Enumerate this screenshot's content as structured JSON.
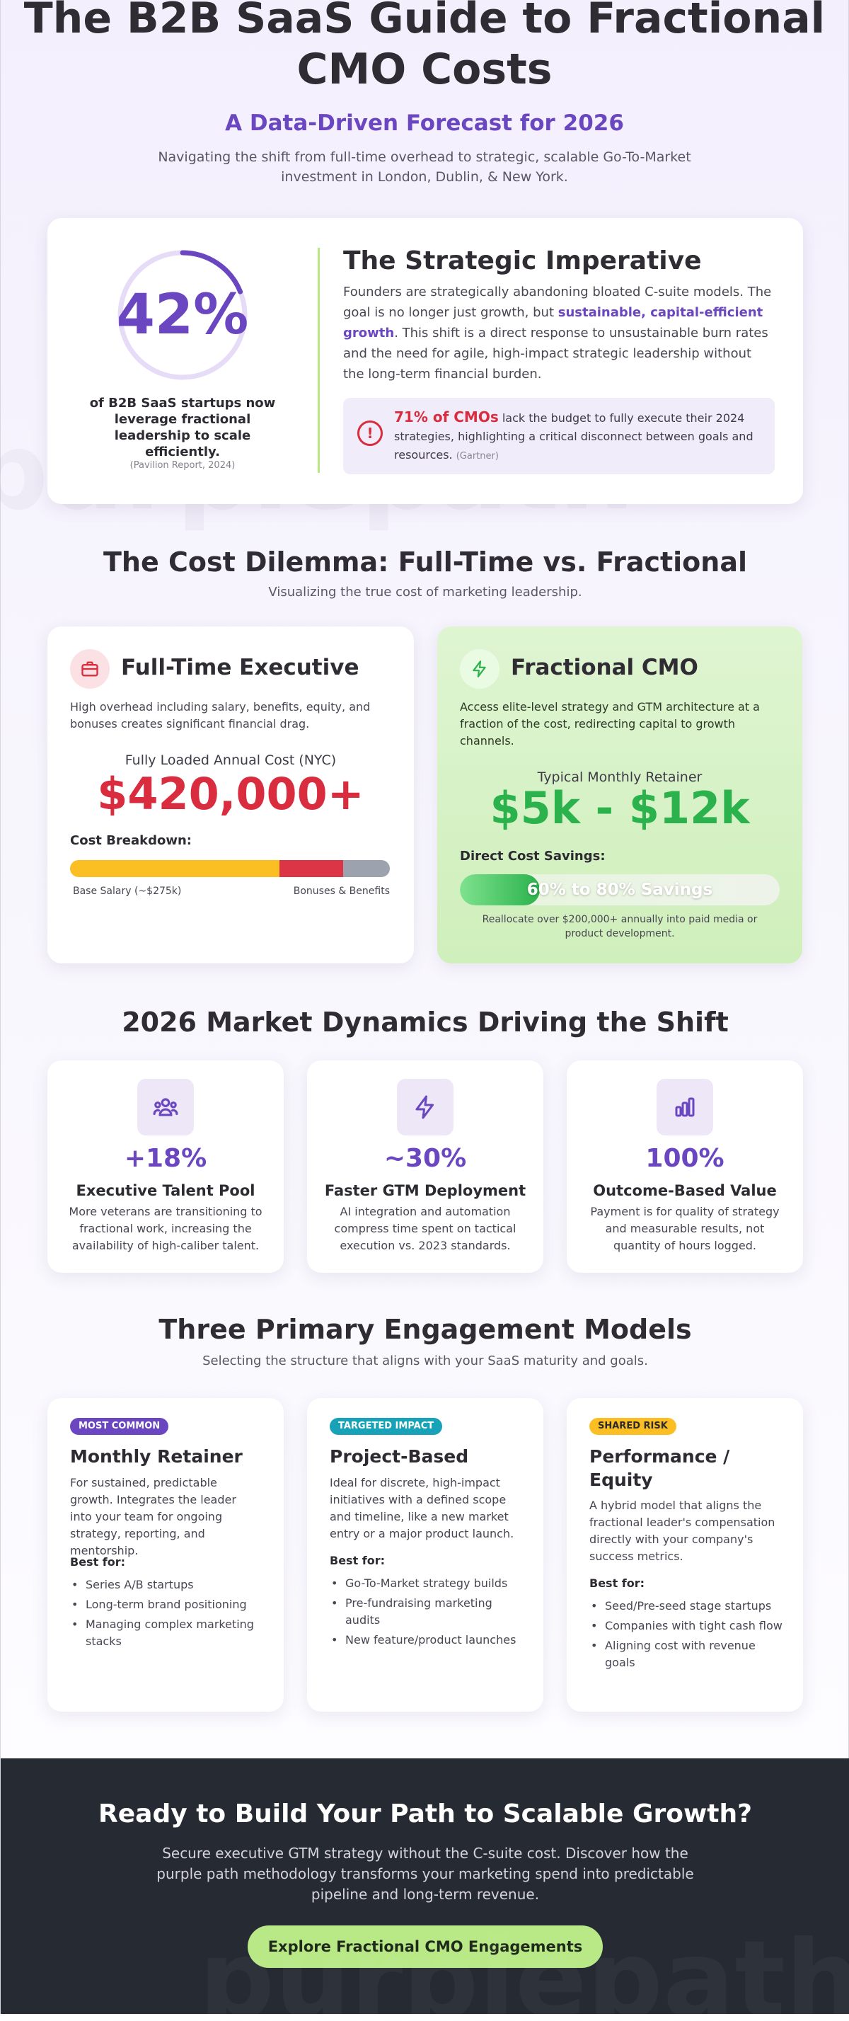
{
  "hero": {
    "title": "The B2B SaaS Guide to Fractional CMO Costs",
    "subtitle": "A Data-Driven Forecast for 2026",
    "description": "Navigating the shift from full-time overhead to strategic, scalable Go-To-Market investment in London, Dublin, & New York."
  },
  "imperative": {
    "stat_value": "42%",
    "stat_fraction": 0.42,
    "stat_caption": "of B2B SaaS startups now leverage fractional leadership to scale efficiently.",
    "stat_source": "(Pavilion Report, 2024)",
    "heading": "The Strategic Imperative",
    "body_part1": "Founders are strategically abandoning bloated C-suite models. The goal is no longer just growth, but ",
    "body_emphasis": "sustainable, capital-efficient growth",
    "body_part2": ". This shift is a direct response to unsustainable burn rates and the need for agile, high-impact strategic leadership without the long-term financial burden.",
    "alert_icon": "alert-circle-icon",
    "alert_highlight": "71% of CMOs",
    "alert_text": " lack the budget to fully execute their 2024 strategies, highlighting a critical disconnect between goals and resources.",
    "alert_source": "(Gartner)"
  },
  "dilemma": {
    "title": "The Cost Dilemma: Full-Time vs. Fractional",
    "subtitle": "Visualizing the true cost of marketing leadership.",
    "fulltime": {
      "icon": "briefcase-icon",
      "title": "Full-Time Executive",
      "description": "High overhead including salary, benefits, equity, and bonuses creates significant financial drag.",
      "cost_label": "Fully Loaded Annual Cost (NYC)",
      "cost_value": "$420,000+",
      "breakdown_label": "Cost Breakdown:",
      "breakdown": [
        {
          "name": "Base Salary",
          "share": 0.655,
          "color": "#fbbf24"
        },
        {
          "name": "Bonuses",
          "share": 0.2,
          "color": "#dc3545"
        },
        {
          "name": "Benefits",
          "share": 0.145,
          "color": "#9ca3af"
        }
      ],
      "label_left": "Base Salary (~$275k)",
      "label_right": "Bonuses & Benefits"
    },
    "fractional": {
      "icon": "lightning-icon",
      "title": "Fractional CMO",
      "description": "Access elite-level strategy and GTM architecture at a fraction of the cost, redirecting capital to growth channels.",
      "cost_label": "Typical Monthly Retainer",
      "cost_value": "$5k - $12k",
      "savings_label": "Direct Cost Savings:",
      "savings_bar_text": "60% to 80% Savings",
      "savings_fill": 0.25,
      "savings_note": "Reallocate over $200,000+ annually into paid media or product development."
    }
  },
  "dynamics": {
    "title": "2026 Market Dynamics Driving the Shift",
    "items": [
      {
        "icon": "users-icon",
        "value": "+18%",
        "title": "Executive Talent Pool",
        "description": "More veterans are transitioning to fractional work, increasing the availability of high-caliber talent."
      },
      {
        "icon": "lightning-icon",
        "value": "~30%",
        "title": "Faster GTM Deployment",
        "description": "AI integration and automation compress time spent on tactical execution vs. 2023 standards."
      },
      {
        "icon": "bar-chart-icon",
        "value": "100%",
        "title": "Outcome-Based Value",
        "description": "Payment is for quality of strategy and measurable results, not quantity of hours logged."
      }
    ]
  },
  "models": {
    "title": "Three Primary Engagement Models",
    "subtitle": "Selecting the structure that aligns with your SaaS maturity and goals.",
    "items": [
      {
        "badge": "MOST COMMON",
        "badge_bg": "#6b46c1",
        "badge_fg": "#ffffff",
        "title": "Monthly Retainer",
        "description": "For sustained, predictable growth. Integrates the leader into your team for ongoing strategy, reporting, and mentorship.",
        "best_for_label": "Best for:",
        "best_for": [
          "Series A/B startups",
          "Long-term brand positioning",
          "Managing complex marketing stacks"
        ]
      },
      {
        "badge": "TARGETED IMPACT",
        "badge_bg": "#17a2b8",
        "badge_fg": "#ffffff",
        "title": "Project-Based",
        "description": "Ideal for discrete, high-impact initiatives with a defined scope and timeline, like a new market entry or a major product launch.",
        "best_for_label": "Best for:",
        "best_for": [
          "Go-To-Market strategy builds",
          "Pre-fundraising marketing audits",
          "New feature/product launches"
        ]
      },
      {
        "badge": "SHARED RISK",
        "badge_bg": "#fbbf24",
        "badge_fg": "#2d2a32",
        "title": "Performance / Equity",
        "description": "A hybrid model that aligns the fractional leader's compensation directly with your company's success metrics.",
        "best_for_label": "Best for:",
        "best_for": [
          "Seed/Pre-seed stage startups",
          "Companies with tight cash flow",
          "Aligning cost with revenue goals"
        ]
      }
    ]
  },
  "cta": {
    "title": "Ready to Build Your Path to Scalable Growth?",
    "description": "Secure executive GTM strategy without the C-suite cost. Discover how the purple path methodology transforms your marketing spend into predictable pipeline and long-term revenue.",
    "button": "Explore Fractional CMO Engagements"
  },
  "colors": {
    "brand_purple": "#6b46c1",
    "accent_green": "#b8e986",
    "alert_red": "#dc3545",
    "savings_green": "#2bb24c"
  }
}
